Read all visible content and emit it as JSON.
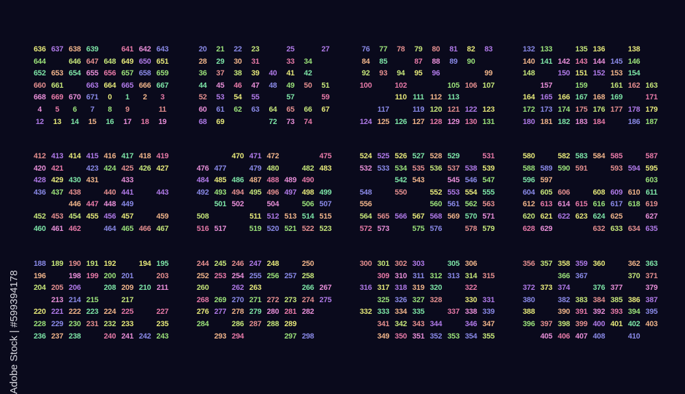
{
  "background_color": "#0a0a1c",
  "palette": [
    "#e6e87a",
    "#9be27a",
    "#7ee6a8",
    "#e58f8f",
    "#e88fd8",
    "#b07ae8",
    "#8a8ae8",
    "#f0b48a",
    "#c6e67a",
    "#e87aa8"
  ],
  "watermark": "Adobe Stock | #599394178",
  "blocks": [
    {
      "rows": [
        [
          636,
          637,
          638,
          639,
          null,
          641,
          642,
          643
        ],
        [
          644,
          null,
          646,
          647,
          648,
          649,
          650,
          651
        ],
        [
          652,
          653,
          654,
          655,
          656,
          657,
          658,
          659
        ],
        [
          660,
          661,
          null,
          663,
          664,
          665,
          666,
          667
        ],
        [
          668,
          669,
          670,
          671,
          0,
          1,
          2,
          3
        ],
        [
          4,
          5,
          6,
          7,
          8,
          9,
          null,
          11
        ],
        [
          12,
          13,
          14,
          15,
          16,
          17,
          18,
          19
        ]
      ]
    },
    {
      "rows": [
        [
          20,
          21,
          22,
          23,
          null,
          25,
          null,
          27
        ],
        [
          28,
          29,
          30,
          31,
          null,
          33,
          34,
          null
        ],
        [
          36,
          37,
          38,
          39,
          40,
          41,
          42,
          null
        ],
        [
          44,
          45,
          46,
          47,
          48,
          49,
          50,
          51
        ],
        [
          52,
          53,
          54,
          55,
          null,
          57,
          null,
          59
        ],
        [
          60,
          61,
          62,
          63,
          64,
          65,
          66,
          67
        ],
        [
          68,
          69,
          null,
          null,
          72,
          73,
          74,
          null
        ]
      ]
    },
    {
      "rows": [
        [
          76,
          77,
          78,
          79,
          80,
          81,
          82,
          83
        ],
        [
          84,
          85,
          null,
          87,
          88,
          89,
          90,
          null
        ],
        [
          92,
          93,
          94,
          95,
          96,
          null,
          null,
          99
        ],
        [
          100,
          null,
          102,
          null,
          null,
          105,
          106,
          107
        ],
        [
          null,
          null,
          110,
          111,
          112,
          113,
          null,
          null
        ],
        [
          null,
          117,
          null,
          119,
          120,
          121,
          122,
          123
        ],
        [
          124,
          125,
          126,
          127,
          128,
          129,
          130,
          131
        ]
      ]
    },
    {
      "rows": [
        [
          132,
          133,
          null,
          135,
          136,
          null,
          138,
          null
        ],
        [
          140,
          141,
          142,
          143,
          144,
          145,
          146,
          null
        ],
        [
          148,
          null,
          150,
          151,
          152,
          153,
          154,
          null
        ],
        [
          null,
          157,
          null,
          159,
          null,
          161,
          162,
          163
        ],
        [
          164,
          165,
          166,
          167,
          168,
          169,
          null,
          171
        ],
        [
          172,
          173,
          174,
          175,
          176,
          177,
          178,
          179
        ],
        [
          180,
          181,
          182,
          183,
          184,
          null,
          186,
          187
        ]
      ]
    },
    {
      "rows": [
        [
          412,
          413,
          414,
          415,
          416,
          417,
          418,
          419
        ],
        [
          420,
          421,
          null,
          423,
          424,
          425,
          426,
          427
        ],
        [
          428,
          429,
          430,
          431,
          null,
          433,
          null,
          null
        ],
        [
          436,
          437,
          438,
          null,
          440,
          441,
          null,
          443
        ],
        [
          null,
          null,
          446,
          447,
          448,
          449,
          null,
          null
        ],
        [
          452,
          453,
          454,
          455,
          456,
          457,
          null,
          459
        ],
        [
          460,
          461,
          462,
          null,
          464,
          465,
          466,
          467
        ]
      ]
    },
    {
      "rows": [
        [
          null,
          null,
          470,
          471,
          472,
          null,
          null,
          475
        ],
        [
          476,
          477,
          null,
          479,
          480,
          null,
          482,
          483
        ],
        [
          484,
          485,
          486,
          487,
          488,
          489,
          490,
          null
        ],
        [
          492,
          493,
          494,
          495,
          496,
          497,
          498,
          499
        ],
        [
          null,
          501,
          502,
          null,
          504,
          null,
          506,
          507
        ],
        [
          508,
          null,
          null,
          511,
          512,
          513,
          514,
          515
        ],
        [
          516,
          517,
          null,
          519,
          520,
          521,
          522,
          523
        ]
      ]
    },
    {
      "rows": [
        [
          524,
          525,
          526,
          527,
          528,
          529,
          null,
          531
        ],
        [
          532,
          533,
          534,
          535,
          536,
          537,
          538,
          539
        ],
        [
          null,
          null,
          542,
          543,
          null,
          545,
          546,
          547
        ],
        [
          548,
          null,
          550,
          null,
          552,
          553,
          554,
          555
        ],
        [
          556,
          null,
          null,
          null,
          560,
          561,
          562,
          563
        ],
        [
          564,
          565,
          566,
          567,
          568,
          569,
          570,
          571
        ],
        [
          572,
          573,
          null,
          575,
          576,
          null,
          578,
          579
        ]
      ]
    },
    {
      "rows": [
        [
          580,
          null,
          582,
          583,
          584,
          585,
          null,
          587
        ],
        [
          588,
          589,
          590,
          591,
          null,
          593,
          594,
          595
        ],
        [
          596,
          597,
          null,
          null,
          null,
          null,
          null,
          603
        ],
        [
          604,
          605,
          606,
          null,
          608,
          609,
          610,
          611
        ],
        [
          612,
          613,
          614,
          615,
          616,
          617,
          618,
          619
        ],
        [
          620,
          621,
          622,
          623,
          624,
          625,
          null,
          627
        ],
        [
          628,
          629,
          null,
          null,
          632,
          633,
          634,
          635
        ]
      ]
    },
    {
      "rows": [
        [
          188,
          189,
          190,
          191,
          192,
          null,
          194,
          195
        ],
        [
          196,
          null,
          198,
          199,
          200,
          201,
          null,
          203
        ],
        [
          204,
          205,
          206,
          null,
          208,
          209,
          210,
          211
        ],
        [
          null,
          213,
          214,
          215,
          null,
          217,
          null,
          null
        ],
        [
          220,
          221,
          222,
          223,
          224,
          225,
          null,
          227
        ],
        [
          228,
          229,
          230,
          231,
          232,
          233,
          null,
          235
        ],
        [
          236,
          237,
          238,
          null,
          240,
          241,
          242,
          243
        ]
      ]
    },
    {
      "rows": [
        [
          244,
          245,
          246,
          247,
          248,
          null,
          250,
          null
        ],
        [
          252,
          253,
          254,
          255,
          256,
          257,
          258,
          null
        ],
        [
          260,
          null,
          262,
          263,
          null,
          null,
          266,
          267
        ],
        [
          268,
          269,
          270,
          271,
          272,
          273,
          274,
          275
        ],
        [
          276,
          277,
          278,
          279,
          280,
          281,
          282,
          null
        ],
        [
          284,
          null,
          286,
          287,
          288,
          289,
          null,
          null
        ],
        [
          null,
          293,
          294,
          null,
          null,
          297,
          298,
          null
        ]
      ]
    },
    {
      "rows": [
        [
          300,
          301,
          302,
          303,
          null,
          305,
          306,
          null
        ],
        [
          null,
          309,
          310,
          311,
          312,
          313,
          314,
          315
        ],
        [
          316,
          317,
          318,
          319,
          320,
          null,
          322,
          null
        ],
        [
          null,
          325,
          326,
          327,
          328,
          null,
          330,
          331
        ],
        [
          332,
          333,
          334,
          335,
          null,
          337,
          338,
          339
        ],
        [
          null,
          341,
          342,
          343,
          344,
          null,
          346,
          347
        ],
        [
          null,
          349,
          350,
          351,
          352,
          353,
          354,
          355
        ]
      ]
    },
    {
      "rows": [
        [
          356,
          357,
          358,
          359,
          360,
          null,
          362,
          363
        ],
        [
          null,
          null,
          366,
          367,
          null,
          null,
          370,
          371
        ],
        [
          372,
          373,
          374,
          null,
          376,
          377,
          null,
          379
        ],
        [
          380,
          null,
          382,
          383,
          384,
          385,
          386,
          387
        ],
        [
          388,
          null,
          390,
          391,
          392,
          393,
          394,
          395
        ],
        [
          396,
          397,
          398,
          399,
          400,
          401,
          402,
          403
        ],
        [
          null,
          405,
          406,
          407,
          408,
          null,
          410,
          null
        ]
      ]
    }
  ]
}
